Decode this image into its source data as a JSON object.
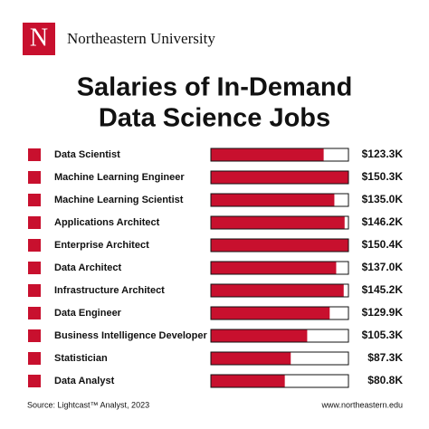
{
  "header": {
    "logo_letter": "N",
    "name": "Northeastern University"
  },
  "chart_data": {
    "type": "bar",
    "orientation": "horizontal",
    "title": [
      "Salaries of In-Demand",
      "Data Science Jobs"
    ],
    "categories": [
      "Data Scientist",
      "Machine Learning Engineer",
      "Machine Learning Scientist",
      "Applications Architect",
      "Enterprise Architect",
      "Data Architect",
      "Infrastructure Architect",
      "Data Engineer",
      "Business Intelligence Developer",
      "Statistician",
      "Data Analyst"
    ],
    "values": [
      123.3,
      150.3,
      135.0,
      146.2,
      150.4,
      137.0,
      145.2,
      129.9,
      105.3,
      87.3,
      80.8
    ],
    "value_labels": [
      "$123.3K",
      "$150.3K",
      "$135.0K",
      "$146.2K",
      "$150.4K",
      "$137.0K",
      "$145.2K",
      "$129.9K",
      "$105.3K",
      "$87.3K",
      "$80.8K"
    ],
    "color": "#c8102e"
  },
  "footer": {
    "source": "Source: Lightcast™ Analyst, 2023",
    "url": "www.northeastern.edu"
  }
}
